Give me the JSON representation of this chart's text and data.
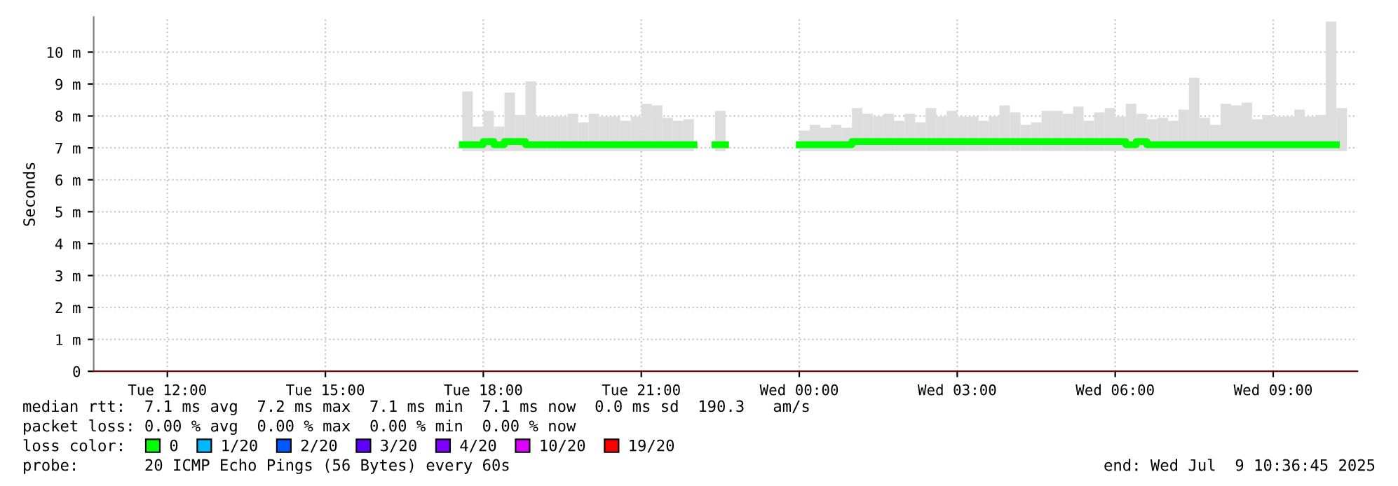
{
  "chart_data": {
    "type": "step",
    "ylabel": "Seconds",
    "legend_title": "loss color:",
    "legend": "bottom",
    "grid": true,
    "xlim": [
      "2025-07-08T10:36",
      "2025-07-09T10:36"
    ],
    "xticks": [
      {
        "value": "2025-07-08T12:00",
        "label": "Tue 12:00"
      },
      {
        "value": "2025-07-08T15:00",
        "label": "Tue 15:00"
      },
      {
        "value": "2025-07-08T18:00",
        "label": "Tue 18:00"
      },
      {
        "value": "2025-07-08T21:00",
        "label": "Tue 21:00"
      },
      {
        "value": "2025-07-09T00:00",
        "label": "Wed 00:00"
      },
      {
        "value": "2025-07-09T03:00",
        "label": "Wed 03:00"
      },
      {
        "value": "2025-07-09T06:00",
        "label": "Wed 06:00"
      },
      {
        "value": "2025-07-09T09:00",
        "label": "Wed 09:00"
      }
    ],
    "ylim": [
      0,
      11.1
    ],
    "yticks": [
      0,
      {
        "value": 1,
        "label": "1 m"
      },
      {
        "value": 2,
        "label": "2 m"
      },
      {
        "value": 3,
        "label": "3 m"
      },
      {
        "value": 4,
        "label": "4 m"
      },
      {
        "value": 5,
        "label": "5 m"
      },
      {
        "value": 6,
        "label": "6 m"
      },
      {
        "value": 7,
        "label": "7 m"
      },
      {
        "value": 8,
        "label": "8 m"
      },
      {
        "value": 9,
        "label": "9 m"
      },
      {
        "value": 10,
        "label": "10 m"
      }
    ],
    "x": [
      "2025-07-08T17:36",
      "2025-07-08T17:48",
      "2025-07-08T18:00",
      "2025-07-08T18:12",
      "2025-07-08T18:24",
      "2025-07-08T18:36",
      "2025-07-08T18:48",
      "2025-07-08T19:00",
      "2025-07-08T19:12",
      "2025-07-08T19:24",
      "2025-07-08T19:36",
      "2025-07-08T19:48",
      "2025-07-08T20:00",
      "2025-07-08T20:12",
      "2025-07-08T20:24",
      "2025-07-08T20:36",
      "2025-07-08T20:48",
      "2025-07-08T21:00",
      "2025-07-08T21:12",
      "2025-07-08T21:24",
      "2025-07-08T21:36",
      "2025-07-08T21:48",
      "2025-07-08T22:00",
      "2025-07-08T22:24",
      "2025-07-08T22:36",
      "2025-07-09T00:00",
      "2025-07-09T00:12",
      "2025-07-09T00:24",
      "2025-07-09T00:36",
      "2025-07-09T00:48",
      "2025-07-09T01:00",
      "2025-07-09T01:12",
      "2025-07-09T01:24",
      "2025-07-09T01:36",
      "2025-07-09T01:48",
      "2025-07-09T02:00",
      "2025-07-09T02:12",
      "2025-07-09T02:24",
      "2025-07-09T02:36",
      "2025-07-09T02:48",
      "2025-07-09T03:00",
      "2025-07-09T03:12",
      "2025-07-09T03:24",
      "2025-07-09T03:36",
      "2025-07-09T03:48",
      "2025-07-09T04:00",
      "2025-07-09T04:12",
      "2025-07-09T04:24",
      "2025-07-09T04:36",
      "2025-07-09T04:48",
      "2025-07-09T05:00",
      "2025-07-09T05:12",
      "2025-07-09T05:24",
      "2025-07-09T05:36",
      "2025-07-09T05:48",
      "2025-07-09T06:00",
      "2025-07-09T06:12",
      "2025-07-09T06:24",
      "2025-07-09T06:36",
      "2025-07-09T06:48",
      "2025-07-09T07:00",
      "2025-07-09T07:12",
      "2025-07-09T07:24",
      "2025-07-09T07:36",
      "2025-07-09T07:48",
      "2025-07-09T08:00",
      "2025-07-09T08:12",
      "2025-07-09T08:24",
      "2025-07-09T08:36",
      "2025-07-09T08:48",
      "2025-07-09T09:00",
      "2025-07-09T09:12",
      "2025-07-09T09:24",
      "2025-07-09T09:36",
      "2025-07-09T09:48",
      "2025-07-09T10:00",
      "2025-07-09T10:12"
    ],
    "series": [
      {
        "type": "bar",
        "color": "#dddddd",
        "base": [
          6.9,
          6.9,
          6.9,
          6.9,
          6.9,
          6.9,
          6.9,
          6.9,
          6.9,
          6.9,
          6.9,
          6.9,
          6.9,
          6.9,
          6.9,
          6.9,
          6.9,
          6.9,
          6.9,
          6.9,
          6.9,
          6.9,
          null,
          6.9,
          null,
          6.9,
          6.9,
          6.9,
          6.9,
          6.9,
          6.9,
          6.9,
          6.9,
          6.9,
          6.9,
          6.9,
          6.9,
          6.9,
          6.9,
          6.9,
          6.9,
          6.9,
          6.9,
          6.9,
          6.9,
          6.9,
          6.9,
          6.9,
          6.9,
          6.9,
          6.9,
          6.9,
          6.9,
          6.9,
          6.9,
          6.9,
          6.9,
          6.9,
          6.9,
          6.9,
          6.9,
          6.9,
          6.9,
          6.9,
          6.9,
          6.9,
          6.9,
          6.9,
          6.9,
          6.9,
          6.9,
          6.9,
          6.9,
          6.9,
          6.9,
          6.9,
          6.9
        ],
        "values": [
          1.87,
          0.77,
          1.26,
          0.77,
          1.83,
          1.13,
          2.18,
          1.08,
          1.08,
          1.08,
          1.17,
          0.9,
          1.17,
          1.08,
          1.08,
          0.95,
          1.08,
          1.48,
          1.43,
          1.04,
          0.95,
          1.0,
          null,
          1.26,
          null,
          0.64,
          0.82,
          0.73,
          0.82,
          0.73,
          1.35,
          1.17,
          1.08,
          1.17,
          0.95,
          1.17,
          0.9,
          1.35,
          1.08,
          1.26,
          1.08,
          1.08,
          0.95,
          1.08,
          1.43,
          1.21,
          0.82,
          0.9,
          1.26,
          1.26,
          1.17,
          1.39,
          0.95,
          1.21,
          1.35,
          1.08,
          1.48,
          1.17,
          1.0,
          1.04,
          0.95,
          1.3,
          2.3,
          1.04,
          0.82,
          1.48,
          1.43,
          1.52,
          1.0,
          1.13,
          1.08,
          1.08,
          1.3,
          1.08,
          1.13,
          4.06,
          1.35
        ]
      },
      {
        "name": "0",
        "color": "#00ff00",
        "values": [
          7.1,
          7.1,
          7.2,
          7.1,
          7.2,
          7.2,
          7.1,
          7.1,
          7.1,
          7.1,
          7.1,
          7.1,
          7.1,
          7.1,
          7.1,
          7.1,
          7.1,
          7.1,
          7.1,
          7.1,
          7.1,
          7.1,
          null,
          7.1,
          null,
          7.1,
          7.1,
          7.1,
          7.1,
          7.1,
          7.2,
          7.2,
          7.2,
          7.2,
          7.2,
          7.2,
          7.2,
          7.2,
          7.2,
          7.2,
          7.2,
          7.2,
          7.2,
          7.2,
          7.2,
          7.2,
          7.2,
          7.2,
          7.2,
          7.2,
          7.2,
          7.2,
          7.2,
          7.2,
          7.2,
          7.2,
          7.1,
          7.2,
          7.1,
          7.1,
          7.1,
          7.1,
          7.1,
          7.1,
          7.1,
          7.1,
          7.1,
          7.1,
          7.1,
          7.1,
          7.1,
          7.1,
          7.1,
          7.1,
          7.1,
          7.1,
          7.1
        ]
      },
      {
        "name": "1/20",
        "color": "#00b8ff",
        "values": [
          null,
          null,
          null,
          null,
          null,
          null,
          null,
          null,
          null,
          null,
          null,
          null,
          null,
          null,
          null,
          null,
          null,
          null,
          null,
          null,
          null,
          null,
          null,
          null,
          null,
          null,
          null,
          null,
          null,
          null,
          null,
          null,
          null,
          null,
          null,
          null,
          null,
          null,
          null,
          null,
          null,
          null,
          null,
          null,
          null,
          null,
          null,
          null,
          null,
          null,
          null,
          null,
          null,
          null,
          null,
          null,
          null,
          null,
          null,
          null,
          null,
          null,
          null,
          null,
          null,
          null,
          null,
          null,
          null,
          null,
          null,
          null,
          null,
          null,
          null,
          null,
          null
        ]
      },
      {
        "name": "2/20",
        "color": "#0059ff",
        "values": [
          null,
          null,
          null,
          null,
          null,
          null,
          null,
          null,
          null,
          null,
          null,
          null,
          null,
          null,
          null,
          null,
          null,
          null,
          null,
          null,
          null,
          null,
          null,
          null,
          null,
          null,
          null,
          null,
          null,
          null,
          null,
          null,
          null,
          null,
          null,
          null,
          null,
          null,
          null,
          null,
          null,
          null,
          null,
          null,
          null,
          null,
          null,
          null,
          null,
          null,
          null,
          null,
          null,
          null,
          null,
          null,
          null,
          null,
          null,
          null,
          null,
          null,
          null,
          null,
          null,
          null,
          null,
          null,
          null,
          null,
          null,
          null,
          null,
          null,
          null,
          null,
          null
        ]
      },
      {
        "name": "3/20",
        "color": "#5e00ff",
        "values": [
          null,
          null,
          null,
          null,
          null,
          null,
          null,
          null,
          null,
          null,
          null,
          null,
          null,
          null,
          null,
          null,
          null,
          null,
          null,
          null,
          null,
          null,
          null,
          null,
          null,
          null,
          null,
          null,
          null,
          null,
          null,
          null,
          null,
          null,
          null,
          null,
          null,
          null,
          null,
          null,
          null,
          null,
          null,
          null,
          null,
          null,
          null,
          null,
          null,
          null,
          null,
          null,
          null,
          null,
          null,
          null,
          null,
          null,
          null,
          null,
          null,
          null,
          null,
          null,
          null,
          null,
          null,
          null,
          null,
          null,
          null,
          null,
          null,
          null,
          null,
          null,
          null
        ]
      },
      {
        "name": "4/20",
        "color": "#7e00ff",
        "values": [
          null,
          null,
          null,
          null,
          null,
          null,
          null,
          null,
          null,
          null,
          null,
          null,
          null,
          null,
          null,
          null,
          null,
          null,
          null,
          null,
          null,
          null,
          null,
          null,
          null,
          null,
          null,
          null,
          null,
          null,
          null,
          null,
          null,
          null,
          null,
          null,
          null,
          null,
          null,
          null,
          null,
          null,
          null,
          null,
          null,
          null,
          null,
          null,
          null,
          null,
          null,
          null,
          null,
          null,
          null,
          null,
          null,
          null,
          null,
          null,
          null,
          null,
          null,
          null,
          null,
          null,
          null,
          null,
          null,
          null,
          null,
          null,
          null,
          null,
          null,
          null,
          null
        ]
      },
      {
        "name": "10/20",
        "color": "#dd00ff",
        "values": [
          null,
          null,
          null,
          null,
          null,
          null,
          null,
          null,
          null,
          null,
          null,
          null,
          null,
          null,
          null,
          null,
          null,
          null,
          null,
          null,
          null,
          null,
          null,
          null,
          null,
          null,
          null,
          null,
          null,
          null,
          null,
          null,
          null,
          null,
          null,
          null,
          null,
          null,
          null,
          null,
          null,
          null,
          null,
          null,
          null,
          null,
          null,
          null,
          null,
          null,
          null,
          null,
          null,
          null,
          null,
          null,
          null,
          null,
          null,
          null,
          null,
          null,
          null,
          null,
          null,
          null,
          null,
          null,
          null,
          null,
          null,
          null,
          null,
          null,
          null,
          null,
          null
        ]
      },
      {
        "name": "19/20",
        "color": "#ff0000",
        "values": [
          null,
          null,
          null,
          null,
          null,
          null,
          null,
          null,
          null,
          null,
          null,
          null,
          null,
          null,
          null,
          null,
          null,
          null,
          null,
          null,
          null,
          null,
          null,
          null,
          null,
          null,
          null,
          null,
          null,
          null,
          null,
          null,
          null,
          null,
          null,
          null,
          null,
          null,
          null,
          null,
          null,
          null,
          null,
          null,
          null,
          null,
          null,
          null,
          null,
          null,
          null,
          null,
          null,
          null,
          null,
          null,
          null,
          null,
          null,
          null,
          null,
          null,
          null,
          null,
          null,
          null,
          null,
          null,
          null,
          null,
          null,
          null,
          null,
          null,
          null,
          null,
          null
        ]
      }
    ],
    "annotations": [
      "median rtt:  7.1 ms avg  7.2 ms max  7.1 ms min  7.1 ms now  0.0 ms sd  190.3   am/s",
      "packet loss: 0.00 % avg  0.00 % max  0.00 % min  0.00 % now",
      "probe:       20 ICMP Echo Pings (56 Bytes) every 60s",
      "end: Wed Jul  9 10:36:45 2025"
    ]
  }
}
